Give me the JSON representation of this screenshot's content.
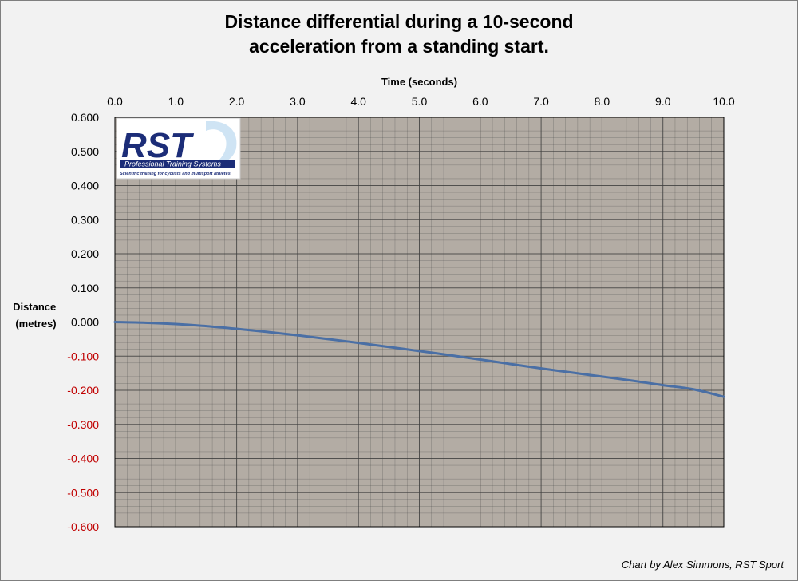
{
  "chart_data": {
    "type": "line",
    "title_lines": [
      "Distance differential during a 10-second",
      "acceleration from a standing start."
    ],
    "xlabel": "Time (seconds)",
    "ylabel_lines": [
      "Distance",
      "(metres)"
    ],
    "xlim": [
      0,
      10
    ],
    "ylim": [
      -0.6,
      0.6
    ],
    "x_ticks": [
      "0.0",
      "1.0",
      "2.0",
      "3.0",
      "4.0",
      "5.0",
      "6.0",
      "7.0",
      "8.0",
      "9.0",
      "10.0"
    ],
    "y_ticks": [
      "0.600",
      "0.500",
      "0.400",
      "0.300",
      "0.200",
      "0.100",
      "0.000",
      "-0.100",
      "-0.200",
      "-0.300",
      "-0.400",
      "-0.500",
      "-0.600"
    ],
    "x_axis_position": "top",
    "grid": true,
    "plot_background": "#b3aca4",
    "grid_color": "#404040",
    "negative_tick_color": "#c00000",
    "series": [
      {
        "color": "#4a6fa5",
        "x": [
          0,
          0.5,
          1,
          1.5,
          2,
          2.5,
          3,
          3.5,
          4,
          4.5,
          5,
          5.5,
          6,
          6.5,
          7,
          7.5,
          8,
          8.5,
          9,
          9.5,
          10
        ],
        "y": [
          0,
          -0.002,
          -0.006,
          -0.012,
          -0.02,
          -0.029,
          -0.039,
          -0.05,
          -0.061,
          -0.073,
          -0.085,
          -0.097,
          -0.11,
          -0.123,
          -0.136,
          -0.148,
          -0.16,
          -0.172,
          -0.185,
          -0.197,
          -0.219
        ]
      }
    ]
  },
  "logo": {
    "text": "RST",
    "subtitle": "Professional Training Systems",
    "tagline": "Scientific training for cyclists and multisport athletes"
  },
  "credit": "Chart by Alex Simmons, RST Sport"
}
